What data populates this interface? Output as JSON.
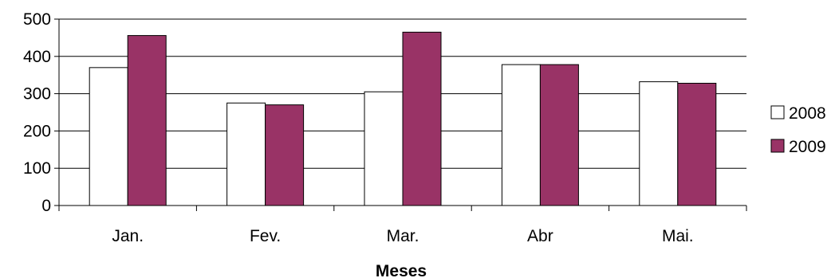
{
  "chart_data": {
    "type": "bar",
    "title": "",
    "xlabel": "Meses",
    "ylabel": "",
    "categories": [
      "Jan.",
      "Fev.",
      "Mar.",
      "Abr",
      "Mai."
    ],
    "series": [
      {
        "name": "2008",
        "values": [
          370,
          275,
          305,
          378,
          332
        ],
        "color": "#ffffff"
      },
      {
        "name": "2009",
        "values": [
          456,
          270,
          465,
          378,
          328
        ],
        "color": "#993366"
      }
    ],
    "ylim": [
      0,
      500
    ],
    "yticks": [
      "0",
      "100",
      "200",
      "300",
      "400",
      "500"
    ],
    "grid": true,
    "legend_position": "right"
  }
}
